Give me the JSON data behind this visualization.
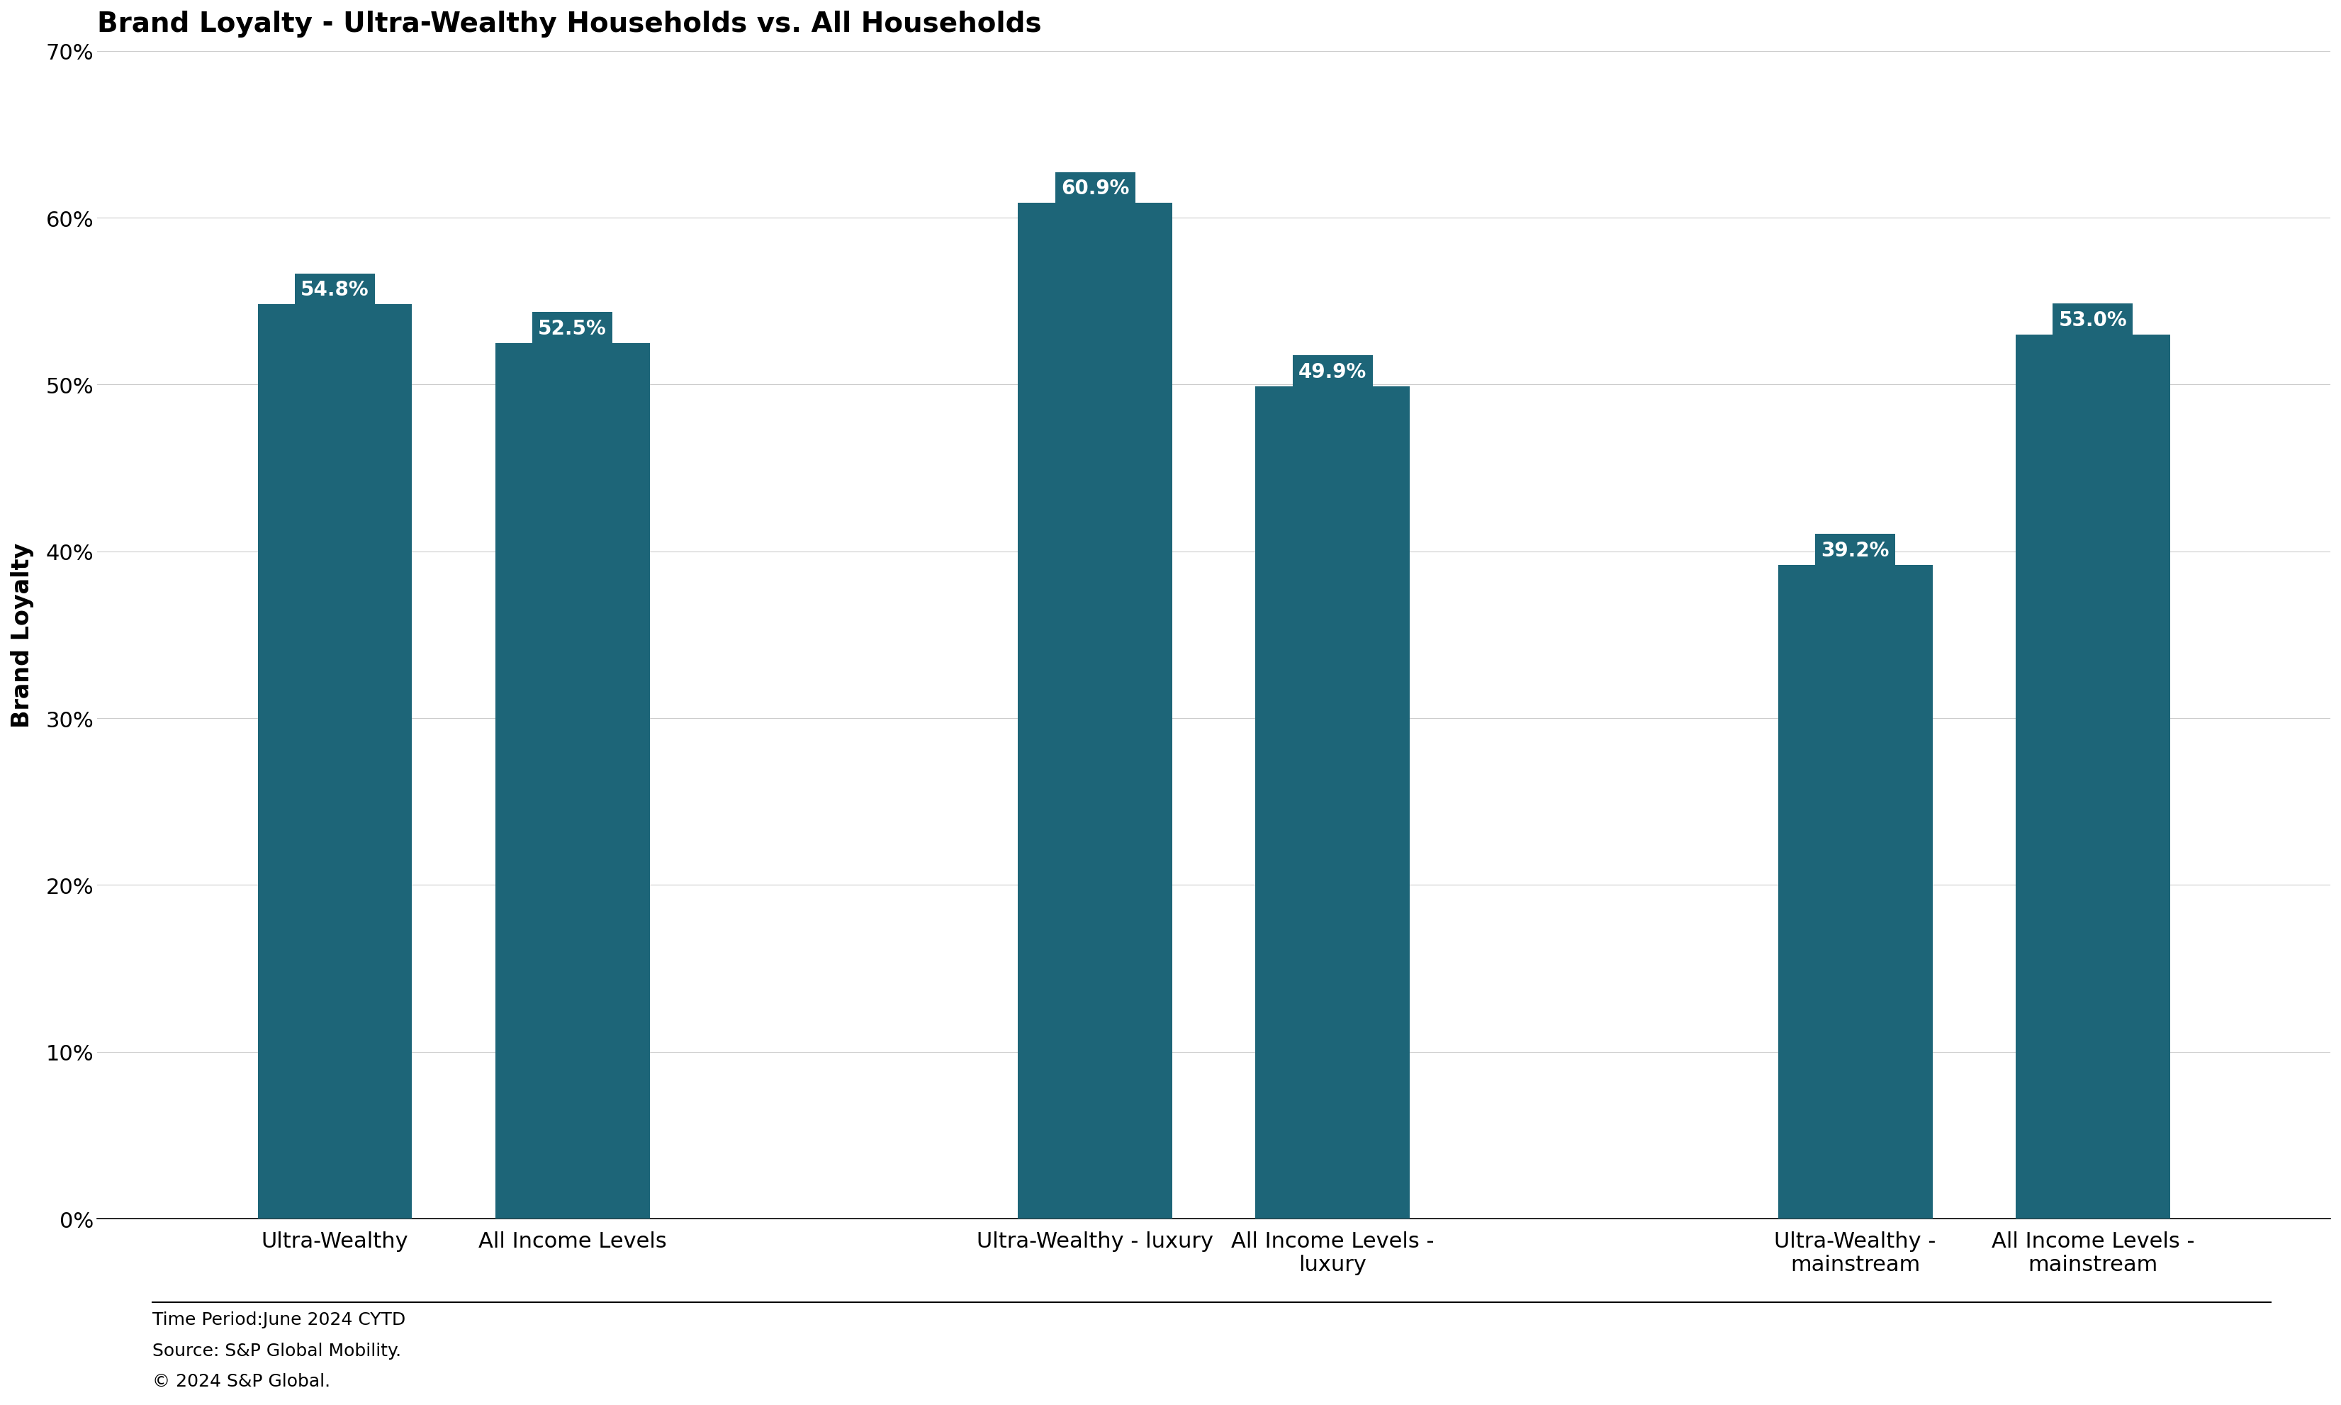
{
  "title": "Brand Loyalty - Ultra-Wealthy Households vs. All Households",
  "ylabel": "Brand Loyalty",
  "background_color": "#ffffff",
  "bar_color": "#1d6578",
  "label_color": "#ffffff",
  "label_bg_color": "#1d6578",
  "categories": [
    "Ultra-Wealthy",
    "All Income Levels",
    "Ultra-Wealthy - luxury",
    "All Income Levels -\nluxury",
    "Ultra-Wealthy -\nmainstream",
    "All Income Levels -\nmainstream"
  ],
  "values": [
    54.8,
    52.5,
    60.9,
    49.9,
    39.2,
    53.0
  ],
  "value_labels": [
    "54.8%",
    "52.5%",
    "60.9%",
    "49.9%",
    "39.2%",
    "53.0%"
  ],
  "ylim": [
    0,
    70
  ],
  "yticks": [
    0,
    10,
    20,
    30,
    40,
    50,
    60,
    70
  ],
  "ytick_labels": [
    "0%",
    "10%",
    "20%",
    "30%",
    "40%",
    "50%",
    "60%",
    "70%"
  ],
  "footnote_line1": "Time Period:June 2024 CYTD",
  "footnote_line2": "Source: S&P Global Mobility.",
  "footnote_line3": "© 2024 S&P Global.",
  "title_fontsize": 28,
  "label_fontsize": 22,
  "tick_fontsize": 22,
  "bar_label_fontsize": 20,
  "footnote_fontsize": 18,
  "ylabel_fontsize": 24
}
